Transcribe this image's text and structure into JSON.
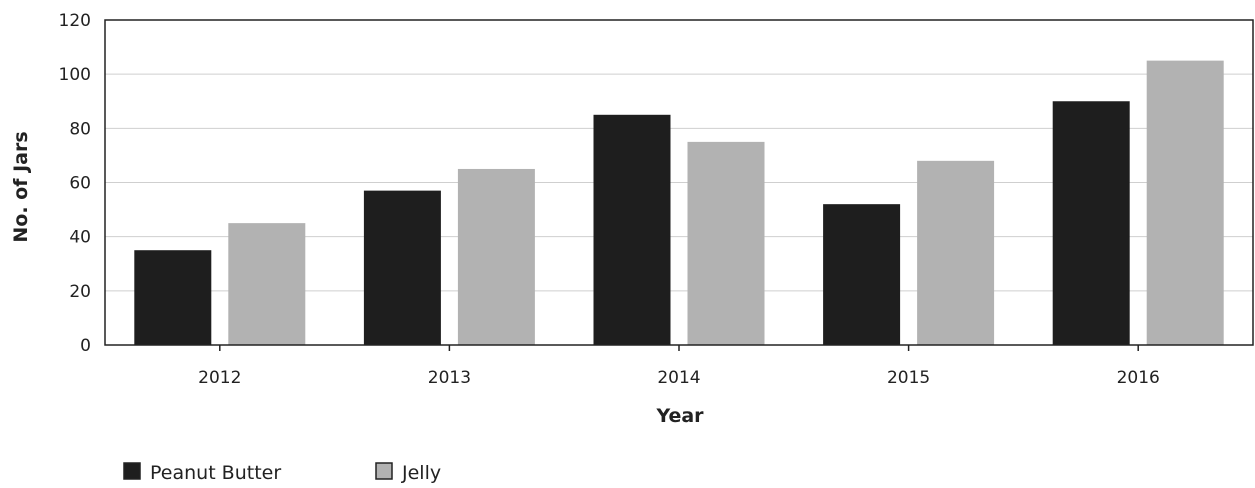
{
  "chart_data": {
    "type": "bar",
    "title": "",
    "xlabel": "Year",
    "ylabel": "No. of Jars",
    "categories": [
      "2012",
      "2013",
      "2014",
      "2015",
      "2016"
    ],
    "series": [
      {
        "name": "Peanut Butter",
        "color": "#1e1e1e",
        "values": [
          35,
          57,
          85,
          52,
          90
        ]
      },
      {
        "name": "Jelly",
        "color": "#b2b2b2",
        "values": [
          45,
          65,
          75,
          68,
          105
        ]
      }
    ],
    "ylim": [
      0,
      120
    ],
    "yticks": [
      0,
      20,
      40,
      60,
      80,
      100,
      120
    ],
    "grid": true,
    "legend_position": "bottom-left"
  }
}
